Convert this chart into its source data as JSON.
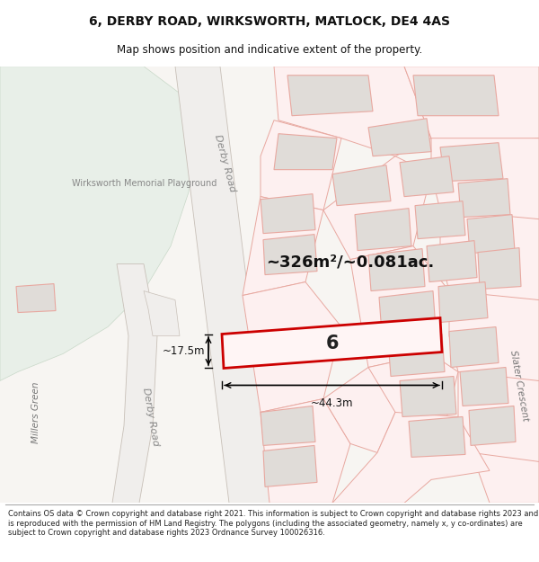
{
  "title_line1": "6, DERBY ROAD, WIRKSWORTH, MATLOCK, DE4 4AS",
  "title_line2": "Map shows position and indicative extent of the property.",
  "area_text": "~326m²/~0.081ac.",
  "property_number": "6",
  "dim_width": "~44.3m",
  "dim_height": "~17.5m",
  "label_derby_road_diag": "Derby Road",
  "label_derby_road_vert": "Derby Road",
  "label_millers_green": "Millers Green",
  "label_slater_crescent": "Slater Crescent",
  "label_wirksworth": "Wirksworth Memorial Playground",
  "footer_text": "Contains OS data © Crown copyright and database right 2021. This information is subject to Crown copyright and database rights 2023 and is reproduced with the permission of HM Land Registry. The polygons (including the associated geometry, namely x, y co-ordinates) are subject to Crown copyright and database rights 2023 Ordnance Survey 100026316.",
  "bg_color": "#f7f5f2",
  "green_area_color": "#e8efe8",
  "road_fill": "#f0eeec",
  "road_edge": "#c8c0b8",
  "highlight_color": "#cc0000",
  "building_fill": "#e0dcd8",
  "building_stroke": "#e8a8a0",
  "plot_stroke": "#e8a8a0",
  "title_fontsize": 10,
  "subtitle_fontsize": 8.5
}
